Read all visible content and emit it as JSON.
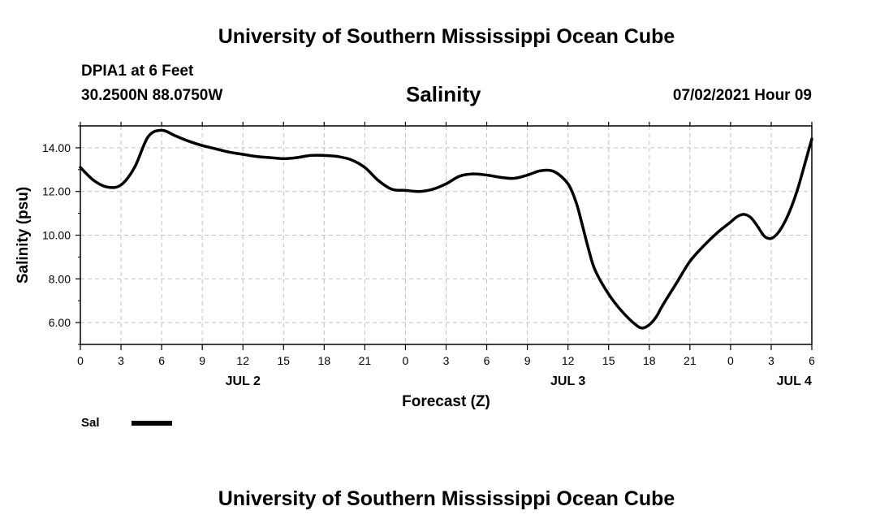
{
  "header": {
    "title": "University of Southern Mississippi Ocean Cube",
    "station": "DPIA1 at 6 Feet",
    "location": "30.2500N  88.0750W",
    "timestamp": "07/02/2021 Hour 09"
  },
  "footer": {
    "title": "University of Southern Mississippi Ocean Cube"
  },
  "chart_data": {
    "type": "line",
    "title": "Salinity",
    "xlabel": "Forecast (Z)",
    "ylabel": "Salinity (psu)",
    "xlim": [
      0,
      54
    ],
    "ylim": [
      5,
      15
    ],
    "grid": true,
    "x_tick_step": 3,
    "x_tick_labels": [
      "0",
      "3",
      "6",
      "9",
      "12",
      "15",
      "18",
      "21",
      "0",
      "3",
      "6",
      "9",
      "12",
      "15",
      "18",
      "21",
      "0",
      "3",
      "6"
    ],
    "y_ticks": [
      6,
      8,
      10,
      12,
      14
    ],
    "y_tick_labels": [
      "6.00",
      "8.00",
      "10.00",
      "12.00",
      "14.00"
    ],
    "date_labels": [
      {
        "label": "JUL 2",
        "x": 12
      },
      {
        "label": "JUL 3",
        "x": 36
      },
      {
        "label": "JUL 4",
        "x": 52.7
      }
    ],
    "legend": {
      "label": "Sal",
      "placement": "bottom-left"
    },
    "series": [
      {
        "name": "Sal",
        "x": [
          0,
          1,
          2,
          3,
          4,
          5,
          6,
          7,
          8,
          9,
          10,
          11,
          12,
          13,
          14,
          15,
          16,
          17,
          18,
          19,
          20,
          21,
          22,
          23,
          24,
          25,
          26,
          27,
          28,
          29,
          30,
          31,
          32,
          33,
          34,
          35,
          36,
          36.6,
          37,
          37.5,
          38,
          39,
          40,
          41,
          41.5,
          42,
          42.5,
          43,
          44,
          45,
          46,
          47,
          48,
          48.5,
          49,
          49.5,
          50,
          50.5,
          51,
          51.5,
          52,
          52.5,
          53,
          53.5,
          54
        ],
        "y": [
          13.1,
          12.5,
          12.2,
          12.3,
          13.1,
          14.5,
          14.8,
          14.55,
          14.3,
          14.1,
          13.95,
          13.8,
          13.7,
          13.6,
          13.55,
          13.5,
          13.55,
          13.65,
          13.65,
          13.6,
          13.45,
          13.1,
          12.5,
          12.1,
          12.05,
          12.0,
          12.1,
          12.35,
          12.7,
          12.8,
          12.75,
          12.65,
          12.6,
          12.75,
          12.95,
          12.9,
          12.35,
          11.5,
          10.6,
          9.4,
          8.4,
          7.3,
          6.5,
          5.9,
          5.75,
          5.9,
          6.25,
          6.8,
          7.8,
          8.8,
          9.5,
          10.1,
          10.6,
          10.85,
          10.95,
          10.8,
          10.4,
          9.95,
          9.85,
          10.1,
          10.6,
          11.3,
          12.2,
          13.3,
          14.4
        ]
      }
    ]
  }
}
